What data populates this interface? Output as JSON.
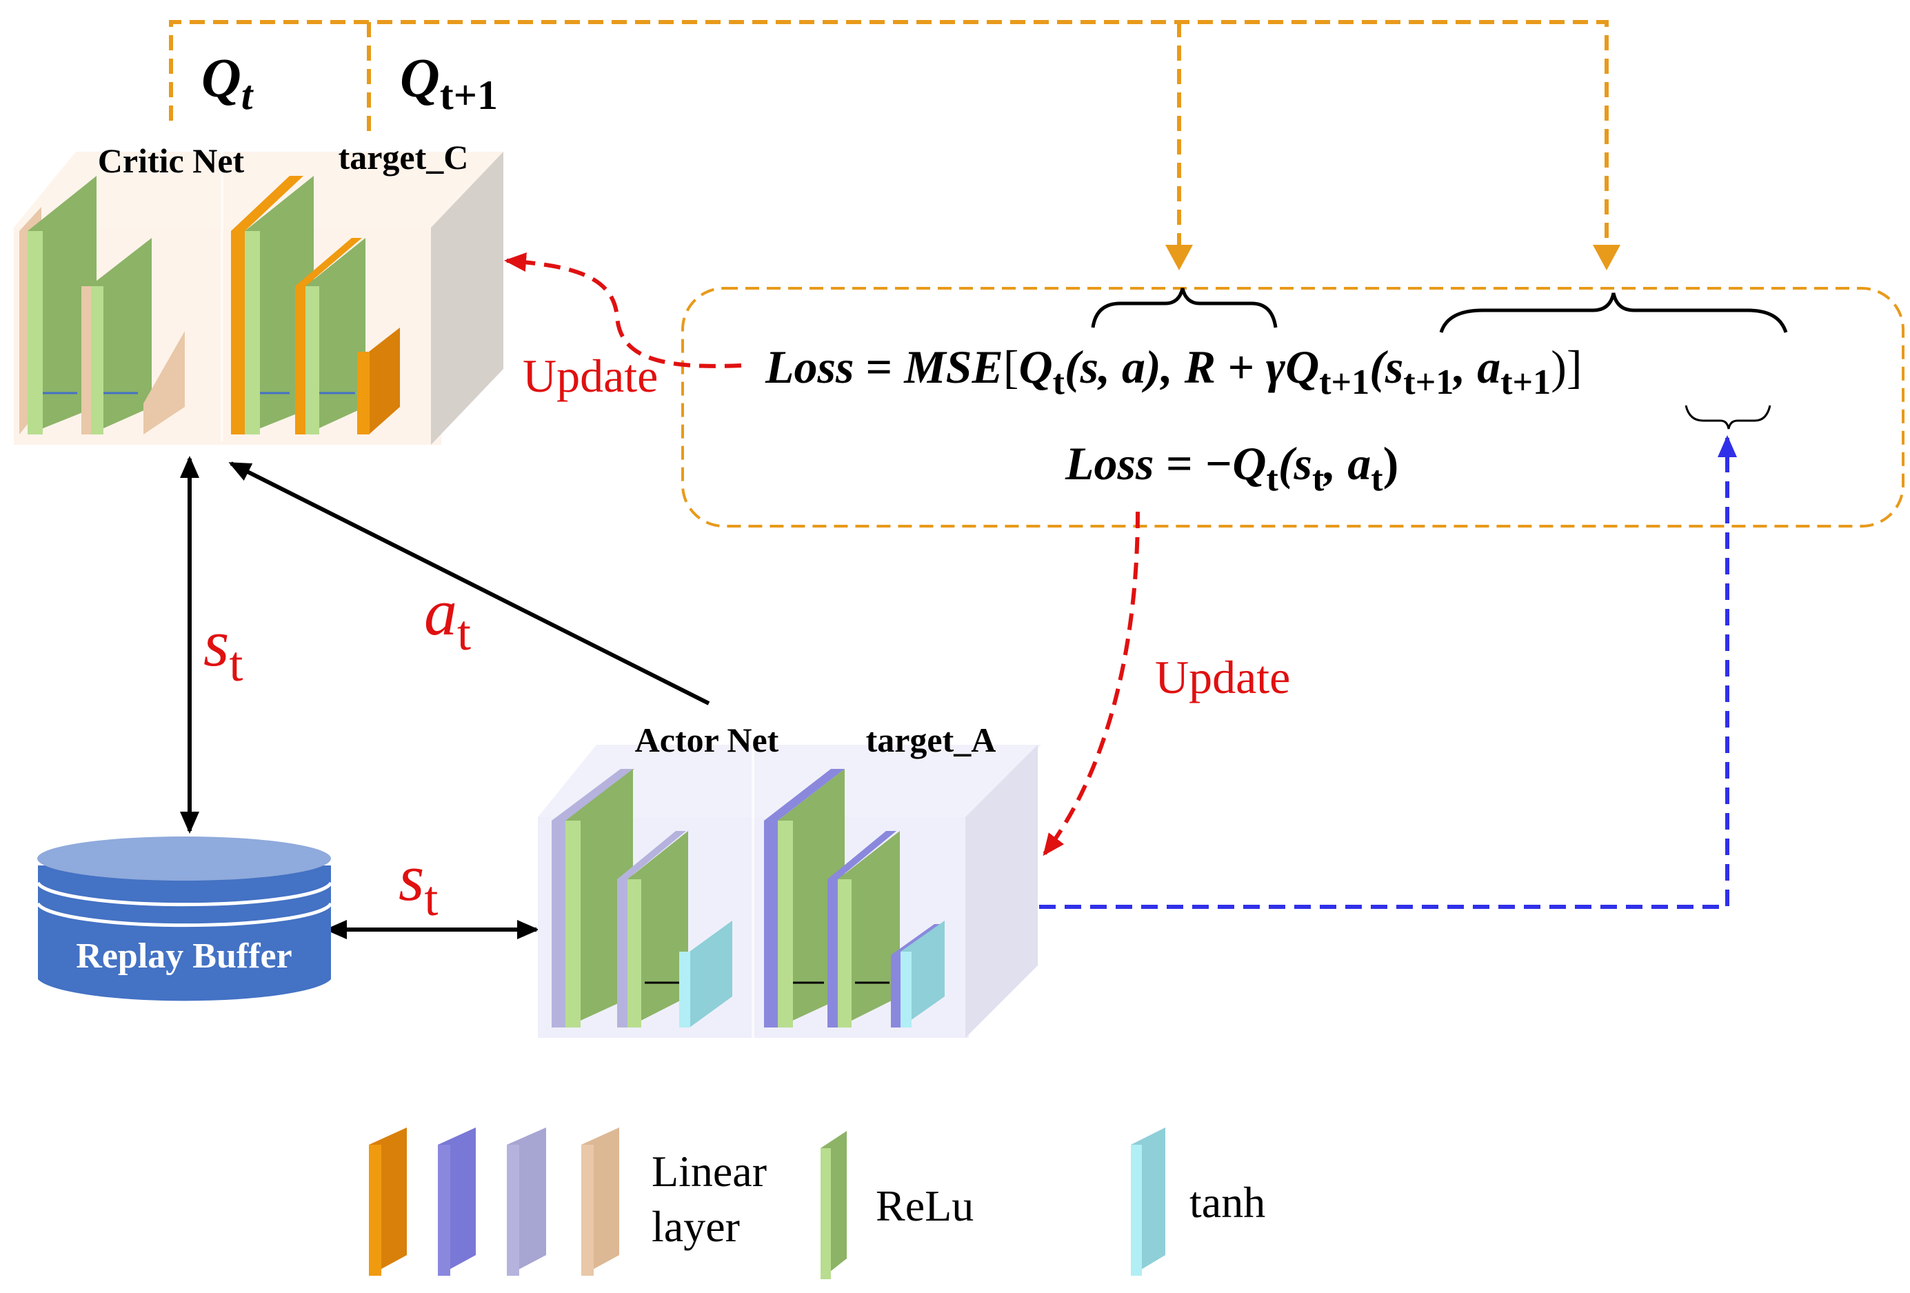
{
  "critic": {
    "net_label": "Critic Net",
    "target_label": "target_C",
    "q_t": {
      "base": "Q",
      "sub": "t"
    },
    "q_t1": {
      "base": "Q",
      "sub": "t+1"
    }
  },
  "actor": {
    "net_label": "Actor Net",
    "target_label": "target_A"
  },
  "buffer": {
    "label": "Replay Buffer"
  },
  "arrows": {
    "update_critic": "Update",
    "update_actor": "Update",
    "a_t": {
      "base": "a",
      "sub": "t"
    },
    "s_t_vertical": {
      "base": "s",
      "sub": "t"
    },
    "s_t_horizontal": {
      "base": "s",
      "sub": "t"
    }
  },
  "equations": {
    "loss1": {
      "lhs": "Loss",
      "eq": " = ",
      "mse": "MSE",
      "lbr": "[",
      "q": "Q",
      "q_sub": "t",
      "q_args": "(s, a), R + γQ",
      "q2_sub": "t+1",
      "open": "(s",
      "s_sub": "t+1",
      "comma": ", a",
      "a_sub": "t+1",
      "close": ")]"
    },
    "loss2": {
      "lhs": "Loss",
      "eq": " = −Q",
      "q_sub": "t",
      "open": "(s",
      "s_sub": "t",
      "comma": ", a",
      "a_sub": "t",
      "close": ")"
    }
  },
  "legend": {
    "linear": [
      "Linear",
      "layer"
    ],
    "relu": "ReLu",
    "tanh": "tanh"
  },
  "colors": {
    "orange": "#e89a1a",
    "red": "#e01010",
    "blue": "#3030e8",
    "relu_green": "#8cb366",
    "relu_light": "#b8dd8f",
    "linear_orange": "#f09a10",
    "linear_purple": "#8a88dd",
    "linear_lavender": "#b5b3dd",
    "linear_tan": "#e8c8a8",
    "tanh_cyan": "#8ecfd8",
    "buffer_blue": "#4472c4"
  }
}
